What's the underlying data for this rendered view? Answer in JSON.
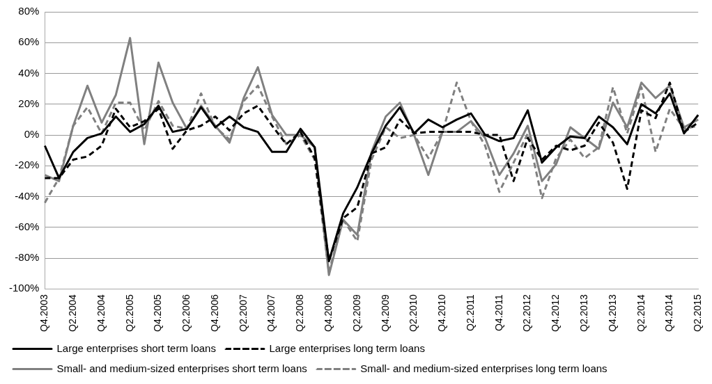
{
  "chart_data": {
    "type": "line",
    "categories": [
      "Q4.2003",
      null,
      "Q2.2004",
      null,
      "Q4.2004",
      null,
      "Q2.2005",
      null,
      "Q4.2005",
      null,
      "Q2.2006",
      null,
      "Q4.2006",
      null,
      "Q2.2007",
      null,
      "Q4.2007",
      null,
      "Q2.2008",
      null,
      "Q4.2008",
      null,
      "Q2.2009",
      null,
      "Q4.2009",
      null,
      "Q2.2010",
      null,
      "Q4.2010",
      null,
      "Q2.2011",
      null,
      "Q4.2011",
      null,
      "Q2.2012",
      null,
      "Q4.2012",
      null,
      "Q2.2013",
      null,
      "Q4.2013",
      null,
      "Q2.2014",
      null,
      "Q4.2014",
      null,
      "Q2.2015"
    ],
    "series": [
      {
        "name": "Large enterprises short term loans",
        "color": "#000000",
        "line_style": "solid",
        "values": [
          -7,
          -28,
          -11,
          -2,
          1,
          12,
          2,
          7,
          19,
          2,
          4,
          18,
          5,
          12,
          5,
          2,
          -11,
          -11,
          4,
          -8,
          -82,
          -51,
          -34,
          -12,
          6,
          18,
          1,
          10,
          5,
          10,
          14,
          0,
          -4,
          -2,
          16,
          -18,
          -8,
          -1,
          -2,
          12,
          5,
          -6,
          20,
          14,
          27,
          1,
          13
        ]
      },
      {
        "name": "Large enterprises long term loans",
        "color": "#000000",
        "line_style": "dashed",
        "values": [
          -28,
          -28,
          -16,
          -14,
          -7,
          17,
          5,
          9,
          17,
          -9,
          3,
          6,
          12,
          3,
          14,
          19,
          6,
          -6,
          2,
          -15,
          -82,
          -54,
          -47,
          -12,
          -8,
          10,
          1,
          2,
          2,
          2,
          2,
          0,
          0,
          -30,
          -2,
          -16,
          -7,
          -10,
          -7,
          8,
          -5,
          -35,
          16,
          11,
          34,
          2,
          8
        ]
      },
      {
        "name": "Small- and medium-sized enterprises short term loans",
        "color": "#808080",
        "line_style": "solid",
        "values": [
          -26,
          -30,
          6,
          32,
          8,
          26,
          63,
          -6,
          47,
          21,
          4,
          19,
          6,
          -5,
          24,
          44,
          13,
          0,
          0,
          -8,
          -91,
          -55,
          -65,
          -11,
          12,
          21,
          0,
          -26,
          2,
          2,
          9,
          -2,
          -26,
          -12,
          6,
          -30,
          -19,
          5,
          -2,
          -9,
          21,
          5,
          34,
          24,
          32,
          5,
          10
        ]
      },
      {
        "name": "Small- and medium-sized enterprises long term loans",
        "color": "#808080",
        "line_style": "dashed",
        "values": [
          -44,
          -28,
          6,
          18,
          1,
          21,
          21,
          3,
          22,
          6,
          4,
          27,
          5,
          -3,
          22,
          32,
          12,
          -6,
          0,
          -16,
          -89,
          -55,
          -69,
          -16,
          5,
          -2,
          0,
          -15,
          2,
          34,
          9,
          -7,
          -37,
          -18,
          1,
          -41,
          -15,
          -3,
          -15,
          -8,
          31,
          1,
          31,
          -11,
          17,
          4,
          6
        ]
      }
    ],
    "ylim": [
      -100,
      80
    ],
    "yticks": [
      {
        "value": -100,
        "label": "-100%"
      },
      {
        "value": -80,
        "label": "-80%"
      },
      {
        "value": -60,
        "label": "-60%"
      },
      {
        "value": -40,
        "label": "-40%"
      },
      {
        "value": -20,
        "label": "-20%"
      },
      {
        "value": 0,
        "label": "0%"
      },
      {
        "value": 20,
        "label": "20%"
      },
      {
        "value": 40,
        "label": "40%"
      },
      {
        "value": 60,
        "label": "60%"
      },
      {
        "value": 80,
        "label": "80%"
      }
    ],
    "grid": "y",
    "legend": "bottom",
    "marker": "none"
  }
}
